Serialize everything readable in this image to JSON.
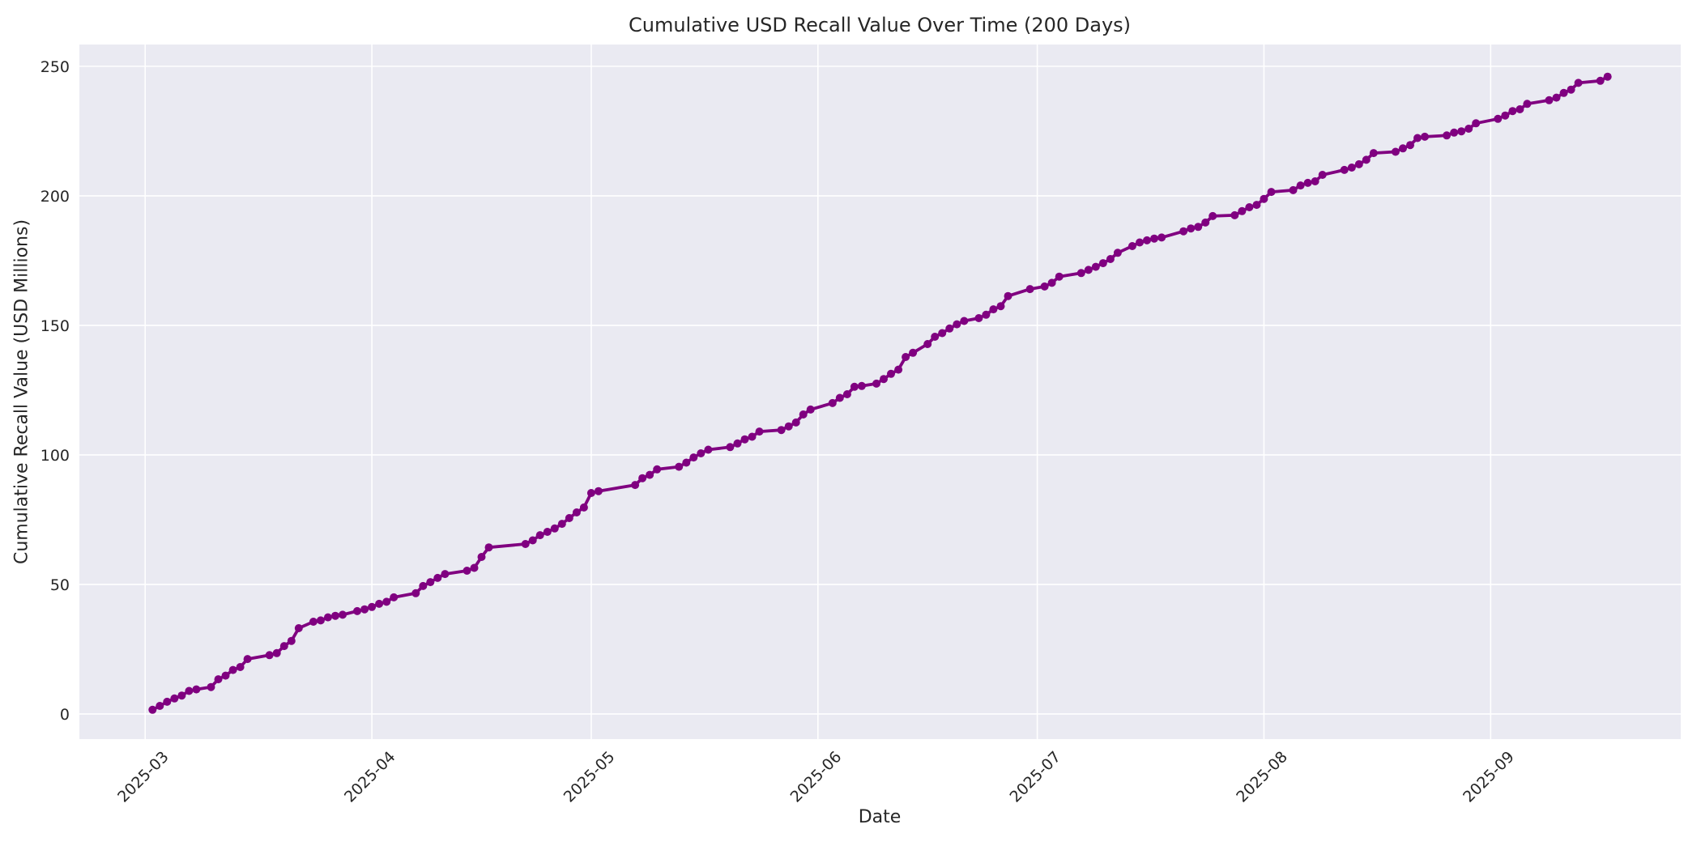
{
  "chart_data": {
    "type": "line",
    "title": "Cumulative USD Recall Value Over Time (200 Days)",
    "xlabel": "Date",
    "ylabel": "Cumulative Recall Value (USD Millions)",
    "series_name": "cumulative-usd-recall-value",
    "line_color": "#800080",
    "plot_bg_color": "#eaeaf2",
    "grid_color": "#ffffff",
    "text_color": "#262626",
    "grid": true,
    "legend": false,
    "marker": "circle",
    "y_ticks": [
      0,
      50,
      100,
      150,
      200,
      250
    ],
    "ylim": [
      -9.7,
      258.4
    ],
    "xlim": [
      "2025-02-20",
      "2025-09-27"
    ],
    "x_ticks": [
      {
        "label": "2025-03",
        "date": "2025-03-01"
      },
      {
        "label": "2025-04",
        "date": "2025-04-01"
      },
      {
        "label": "2025-05",
        "date": "2025-05-01"
      },
      {
        "label": "2025-06",
        "date": "2025-06-01"
      },
      {
        "label": "2025-07",
        "date": "2025-07-01"
      },
      {
        "label": "2025-08",
        "date": "2025-08-01"
      },
      {
        "label": "2025-09",
        "date": "2025-09-01"
      }
    ],
    "points": [
      [
        "2025-03-02",
        1.6
      ],
      [
        "2025-03-03",
        3.1
      ],
      [
        "2025-03-04",
        4.7
      ],
      [
        "2025-03-05",
        6.0
      ],
      [
        "2025-03-06",
        7.1
      ],
      [
        "2025-03-07",
        8.9
      ],
      [
        "2025-03-08",
        9.5
      ],
      [
        "2025-03-10",
        10.4
      ],
      [
        "2025-03-11",
        13.4
      ],
      [
        "2025-03-12",
        14.8
      ],
      [
        "2025-03-13",
        17.0
      ],
      [
        "2025-03-14",
        18.1
      ],
      [
        "2025-03-15",
        21.2
      ],
      [
        "2025-03-18",
        22.7
      ],
      [
        "2025-03-19",
        23.5
      ],
      [
        "2025-03-20",
        26.2
      ],
      [
        "2025-03-21",
        28.2
      ],
      [
        "2025-03-22",
        33.1
      ],
      [
        "2025-03-24",
        35.6
      ],
      [
        "2025-03-25",
        36.1
      ],
      [
        "2025-03-26",
        37.3
      ],
      [
        "2025-03-27",
        37.9
      ],
      [
        "2025-03-28",
        38.3
      ],
      [
        "2025-03-30",
        39.7
      ],
      [
        "2025-03-31",
        40.4
      ],
      [
        "2025-04-01",
        41.3
      ],
      [
        "2025-04-02",
        42.5
      ],
      [
        "2025-04-03",
        43.3
      ],
      [
        "2025-04-04",
        45.0
      ],
      [
        "2025-04-07",
        46.6
      ],
      [
        "2025-04-08",
        49.4
      ],
      [
        "2025-04-09",
        50.9
      ],
      [
        "2025-04-10",
        52.5
      ],
      [
        "2025-04-11",
        54.0
      ],
      [
        "2025-04-14",
        55.3
      ],
      [
        "2025-04-15",
        56.4
      ],
      [
        "2025-04-16",
        60.6
      ],
      [
        "2025-04-17",
        64.3
      ],
      [
        "2025-04-22",
        65.6
      ],
      [
        "2025-04-23",
        67.0
      ],
      [
        "2025-04-24",
        69.0
      ],
      [
        "2025-04-25",
        70.3
      ],
      [
        "2025-04-26",
        71.6
      ],
      [
        "2025-04-27",
        73.4
      ],
      [
        "2025-04-28",
        75.6
      ],
      [
        "2025-04-29",
        77.8
      ],
      [
        "2025-04-30",
        79.7
      ],
      [
        "2025-05-01",
        85.3
      ],
      [
        "2025-05-02",
        86.0
      ],
      [
        "2025-05-07",
        88.4
      ],
      [
        "2025-05-08",
        91.0
      ],
      [
        "2025-05-09",
        92.3
      ],
      [
        "2025-05-10",
        94.4
      ],
      [
        "2025-05-13",
        95.4
      ],
      [
        "2025-05-14",
        97.0
      ],
      [
        "2025-05-15",
        99.0
      ],
      [
        "2025-05-16",
        100.6
      ],
      [
        "2025-05-17",
        102.0
      ],
      [
        "2025-05-20",
        103.0
      ],
      [
        "2025-05-21",
        104.4
      ],
      [
        "2025-05-22",
        106.0
      ],
      [
        "2025-05-23",
        107.0
      ],
      [
        "2025-05-24",
        109.0
      ],
      [
        "2025-05-27",
        109.6
      ],
      [
        "2025-05-28",
        111.0
      ],
      [
        "2025-05-29",
        112.5
      ],
      [
        "2025-05-30",
        115.6
      ],
      [
        "2025-05-31",
        117.5
      ],
      [
        "2025-06-03",
        120.0
      ],
      [
        "2025-06-04",
        122.0
      ],
      [
        "2025-06-05",
        123.4
      ],
      [
        "2025-06-06",
        126.3
      ],
      [
        "2025-06-07",
        126.6
      ],
      [
        "2025-06-09",
        127.5
      ],
      [
        "2025-06-10",
        129.3
      ],
      [
        "2025-06-11",
        131.3
      ],
      [
        "2025-06-12",
        132.9
      ],
      [
        "2025-06-13",
        137.8
      ],
      [
        "2025-06-14",
        139.4
      ],
      [
        "2025-06-16",
        142.8
      ],
      [
        "2025-06-17",
        145.6
      ],
      [
        "2025-06-18",
        147.0
      ],
      [
        "2025-06-19",
        148.8
      ],
      [
        "2025-06-20",
        150.4
      ],
      [
        "2025-06-21",
        151.7
      ],
      [
        "2025-06-23",
        152.8
      ],
      [
        "2025-06-24",
        154.1
      ],
      [
        "2025-06-25",
        156.2
      ],
      [
        "2025-06-26",
        157.4
      ],
      [
        "2025-06-27",
        161.3
      ],
      [
        "2025-06-30",
        164.0
      ],
      [
        "2025-07-02",
        165.0
      ],
      [
        "2025-07-03",
        166.4
      ],
      [
        "2025-07-04",
        168.8
      ],
      [
        "2025-07-07",
        170.2
      ],
      [
        "2025-07-08",
        171.4
      ],
      [
        "2025-07-09",
        172.6
      ],
      [
        "2025-07-10",
        174.0
      ],
      [
        "2025-07-11",
        175.6
      ],
      [
        "2025-07-12",
        178.0
      ],
      [
        "2025-07-14",
        180.6
      ],
      [
        "2025-07-15",
        182.0
      ],
      [
        "2025-07-16",
        182.8
      ],
      [
        "2025-07-17",
        183.5
      ],
      [
        "2025-07-18",
        183.9
      ],
      [
        "2025-07-21",
        186.3
      ],
      [
        "2025-07-22",
        187.4
      ],
      [
        "2025-07-23",
        188.0
      ],
      [
        "2025-07-24",
        189.7
      ],
      [
        "2025-07-25",
        192.2
      ],
      [
        "2025-07-28",
        192.5
      ],
      [
        "2025-07-29",
        194.1
      ],
      [
        "2025-07-30",
        195.6
      ],
      [
        "2025-07-31",
        196.5
      ],
      [
        "2025-08-01",
        198.8
      ],
      [
        "2025-08-02",
        201.5
      ],
      [
        "2025-08-05",
        202.2
      ],
      [
        "2025-08-06",
        204.0
      ],
      [
        "2025-08-07",
        205.0
      ],
      [
        "2025-08-08",
        205.6
      ],
      [
        "2025-08-09",
        208.1
      ],
      [
        "2025-08-12",
        210.0
      ],
      [
        "2025-08-13",
        210.9
      ],
      [
        "2025-08-14",
        212.2
      ],
      [
        "2025-08-15",
        213.9
      ],
      [
        "2025-08-16",
        216.5
      ],
      [
        "2025-08-19",
        217.0
      ],
      [
        "2025-08-20",
        218.3
      ],
      [
        "2025-08-21",
        219.6
      ],
      [
        "2025-08-22",
        222.3
      ],
      [
        "2025-08-23",
        222.8
      ],
      [
        "2025-08-26",
        223.3
      ],
      [
        "2025-08-27",
        224.4
      ],
      [
        "2025-08-28",
        224.9
      ],
      [
        "2025-08-29",
        225.9
      ],
      [
        "2025-08-30",
        228.0
      ],
      [
        "2025-09-02",
        229.7
      ],
      [
        "2025-09-03",
        231.0
      ],
      [
        "2025-09-04",
        232.7
      ],
      [
        "2025-09-05",
        233.4
      ],
      [
        "2025-09-06",
        235.5
      ],
      [
        "2025-09-09",
        236.9
      ],
      [
        "2025-09-10",
        237.9
      ],
      [
        "2025-09-11",
        239.7
      ],
      [
        "2025-09-12",
        241.0
      ],
      [
        "2025-09-13",
        243.6
      ],
      [
        "2025-09-16",
        244.4
      ],
      [
        "2025-09-17",
        246.0
      ]
    ]
  }
}
